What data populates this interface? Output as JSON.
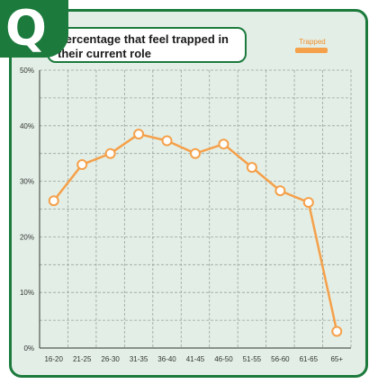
{
  "badge": {
    "letter": "Q"
  },
  "title": "Percentage that feel trapped in their current role",
  "legend": {
    "label": "Trapped",
    "color": "#f5a04a"
  },
  "colors": {
    "frame": "#1b7a3c",
    "background": "#e3efe6",
    "line": "#f5a04a",
    "point_fill": "#ffffff"
  },
  "chart_data": {
    "type": "line",
    "title": "Percentage that feel trapped in their current role",
    "categories": [
      "16-20",
      "21-25",
      "26-30",
      "31-35",
      "36-40",
      "41-45",
      "46-50",
      "51-55",
      "56-60",
      "61-65",
      "65+"
    ],
    "series": [
      {
        "name": "Trapped",
        "values": [
          26.5,
          33,
          35,
          38.5,
          37.3,
          35,
          36.7,
          32.5,
          28.3,
          26.2,
          3
        ]
      }
    ],
    "yticks": [
      "0%",
      "10%",
      "20%",
      "30%",
      "40%",
      "50%"
    ],
    "ylim": [
      0,
      50
    ],
    "xlabel": "",
    "ylabel": "",
    "grid": true,
    "legend_position": "top-right"
  }
}
